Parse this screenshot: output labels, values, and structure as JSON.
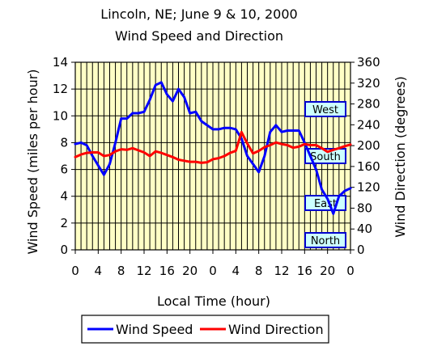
{
  "chart_data": {
    "type": "line",
    "title": "Lincoln, NE; June 9 & 10, 2000",
    "subtitle": "Wind Speed and Direction",
    "xlabel": "Local Time (hour)",
    "ylabel": "Wind Speed (miles per hour)",
    "y2label": "Wind Direction (degrees)",
    "x_tick_labels": [
      "0",
      "4",
      "8",
      "12",
      "16",
      "20",
      "0",
      "4",
      "8",
      "12",
      "16",
      "20",
      "0"
    ],
    "ylim": [
      0,
      14
    ],
    "y_ticks": [
      0,
      2,
      4,
      6,
      8,
      10,
      12,
      14
    ],
    "y2lim": [
      0,
      360
    ],
    "y2_ticks": [
      0,
      40,
      80,
      120,
      160,
      200,
      240,
      280,
      320,
      360
    ],
    "grid": true,
    "legend_position": "bottom",
    "x": [
      0,
      1,
      2,
      3,
      4,
      5,
      6,
      7,
      8,
      9,
      10,
      11,
      12,
      13,
      14,
      15,
      16,
      17,
      18,
      19,
      20,
      21,
      22,
      23,
      24,
      25,
      26,
      27,
      28,
      29,
      30,
      31,
      32,
      33,
      34,
      35,
      36,
      37,
      38,
      39,
      40,
      41,
      42,
      43,
      44,
      45,
      46,
      47,
      48
    ],
    "series": [
      {
        "name": "Wind Speed",
        "axis": "left",
        "color": "#0000ff",
        "values": [
          7.9,
          8.0,
          7.8,
          7.0,
          6.3,
          5.6,
          6.4,
          8.0,
          9.8,
          9.8,
          10.2,
          10.2,
          10.3,
          11.2,
          12.3,
          12.5,
          11.6,
          11.1,
          12.0,
          11.4,
          10.2,
          10.3,
          9.6,
          9.3,
          9.0,
          9.0,
          9.1,
          9.1,
          9.0,
          8.3,
          7.0,
          6.4,
          5.8,
          7.0,
          8.8,
          9.3,
          8.8,
          8.9,
          8.9,
          8.9,
          8.0,
          7.0,
          6.0,
          4.5,
          3.8,
          2.7,
          4.0,
          4.4,
          4.6
        ]
      },
      {
        "name": "Wind Direction",
        "axis": "right",
        "color": "#ff0000",
        "values": [
          178,
          183,
          186,
          187,
          187,
          180,
          182,
          189,
          193,
          192,
          195,
          191,
          187,
          180,
          189,
          186,
          182,
          178,
          173,
          171,
          169,
          169,
          167,
          168,
          174,
          176,
          180,
          186,
          190,
          226,
          204,
          185,
          190,
          197,
          201,
          206,
          203,
          201,
          196,
          198,
          203,
          201,
          201,
          195,
          188,
          192,
          195,
          199,
          202
        ]
      }
    ],
    "annotations": [
      {
        "label": "West",
        "degrees": 270
      },
      {
        "label": "South",
        "degrees": 180
      },
      {
        "label": "East",
        "degrees": 90
      },
      {
        "label": "North",
        "degrees": 0
      }
    ]
  }
}
